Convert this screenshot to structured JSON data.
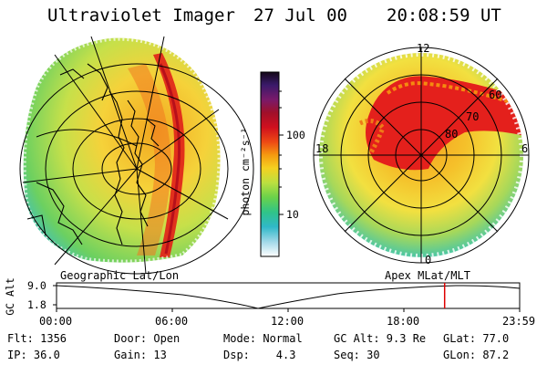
{
  "header": {
    "instrument": "Ultraviolet Imager",
    "date": "27 Jul 00",
    "time": "20:08:59 UT"
  },
  "colorbar": {
    "label": "photon cm⁻²s⁻¹",
    "ticks": [
      "100",
      "10"
    ],
    "colors": [
      "#1a0a1a",
      "#3a1a6a",
      "#6a1f7a",
      "#8c1434",
      "#c8102a",
      "#e8281a",
      "#f06010",
      "#f7a010",
      "#f5d020",
      "#c8e040",
      "#7ad24a",
      "#38c880",
      "#30b8c8",
      "#80d0e0",
      "#d8e8ee",
      "#ffffff"
    ]
  },
  "left_panel": {
    "label": "Geographic Lat/Lon"
  },
  "right_panel": {
    "label": "Apex MLat/MLT",
    "mlt_labels": {
      "top": "12",
      "left": "18",
      "right": "6",
      "bottom": "0"
    },
    "lat_labels": [
      "60",
      "70",
      "80"
    ]
  },
  "altitude_plot": {
    "ylabel": "GC Alt",
    "ticks": [
      "9.0",
      "1.8"
    ],
    "time_ticks": [
      "00:00",
      "06:00",
      "12:00",
      "18:00",
      "23:59"
    ],
    "current_time_fraction": 0.838,
    "marker_color": "#dd0000"
  },
  "info": {
    "row1": {
      "flt": "Flt: 1356",
      "door": "Door: Open",
      "mode": "Mode: Normal",
      "gcalt": "GC Alt: 9.3 Re",
      "glat": "GLat: 77.0"
    },
    "row2": {
      "ip": "IP: 36.0",
      "gain": "Gain: 13",
      "dsp": "Dsp:    4.3",
      "seq": "Seq: 30",
      "glon": "GLon: 87.2"
    }
  }
}
